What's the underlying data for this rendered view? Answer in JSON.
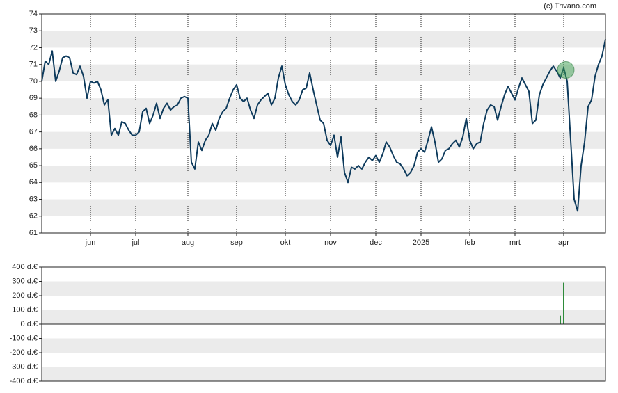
{
  "chart_data": [
    {
      "type": "line",
      "source": "(c) Trivano.com",
      "color": "#0d3a5c",
      "ylim": [
        61,
        74
      ],
      "yticks": [
        61,
        62,
        63,
        64,
        65,
        66,
        67,
        68,
        69,
        70,
        71,
        72,
        73,
        74
      ],
      "grid": true,
      "categories": [
        null,
        null,
        null,
        null,
        null,
        null,
        null,
        null,
        null,
        null,
        null,
        null,
        null,
        null,
        "jun",
        null,
        null,
        null,
        null,
        null,
        null,
        null,
        null,
        null,
        null,
        null,
        null,
        "jul",
        null,
        null,
        null,
        null,
        null,
        null,
        null,
        null,
        null,
        null,
        null,
        null,
        null,
        null,
        "aug",
        null,
        null,
        null,
        null,
        null,
        null,
        null,
        null,
        null,
        null,
        null,
        null,
        null,
        "sep",
        null,
        null,
        null,
        null,
        null,
        null,
        null,
        null,
        null,
        null,
        null,
        null,
        null,
        "okt",
        null,
        null,
        null,
        null,
        null,
        null,
        null,
        null,
        null,
        null,
        null,
        null,
        "nov",
        null,
        null,
        null,
        null,
        null,
        null,
        null,
        null,
        null,
        null,
        null,
        null,
        "dec",
        null,
        null,
        null,
        null,
        null,
        null,
        null,
        null,
        null,
        null,
        null,
        null,
        "2025",
        null,
        null,
        null,
        null,
        null,
        null,
        null,
        null,
        null,
        null,
        null,
        null,
        null,
        "feb",
        null,
        null,
        null,
        null,
        null,
        null,
        null,
        null,
        null,
        null,
        null,
        null,
        "mrt",
        null,
        null,
        null,
        null,
        null,
        null,
        null,
        null,
        null,
        null,
        null,
        null,
        null,
        "apr",
        null,
        null,
        null,
        null,
        null,
        null,
        null,
        null,
        null,
        null,
        null,
        null
      ],
      "values": [
        70.0,
        71.2,
        71.0,
        71.8,
        70.0,
        70.6,
        71.4,
        71.5,
        71.4,
        70.5,
        70.4,
        70.9,
        70.3,
        69.0,
        70.0,
        69.9,
        70.0,
        69.5,
        68.6,
        68.9,
        66.8,
        67.2,
        66.8,
        67.6,
        67.5,
        67.1,
        66.8,
        66.8,
        67.0,
        68.2,
        68.4,
        67.5,
        68.0,
        68.7,
        67.8,
        68.4,
        68.7,
        68.3,
        68.5,
        68.6,
        69.0,
        69.1,
        69.0,
        65.2,
        64.8,
        66.4,
        65.9,
        66.5,
        66.8,
        67.5,
        67.1,
        67.8,
        68.2,
        68.4,
        69.0,
        69.5,
        69.8,
        69.0,
        68.8,
        69.0,
        68.3,
        67.8,
        68.6,
        68.9,
        69.1,
        69.3,
        68.6,
        69.0,
        70.2,
        70.9,
        69.8,
        69.2,
        68.8,
        68.6,
        68.9,
        69.5,
        69.6,
        70.5,
        69.5,
        68.6,
        67.7,
        67.5,
        66.5,
        66.2,
        66.8,
        65.5,
        66.7,
        64.6,
        64.0,
        64.9,
        64.8,
        65.0,
        64.8,
        65.2,
        65.5,
        65.3,
        65.6,
        65.2,
        65.7,
        66.4,
        66.1,
        65.6,
        65.2,
        65.1,
        64.8,
        64.4,
        64.6,
        65.0,
        65.8,
        66.0,
        65.8,
        66.5,
        67.3,
        66.4,
        65.2,
        65.4,
        65.9,
        66.0,
        66.3,
        66.5,
        66.1,
        66.7,
        67.8,
        66.5,
        66.0,
        66.3,
        66.4,
        67.5,
        68.3,
        68.6,
        68.5,
        67.7,
        68.5,
        69.2,
        69.7,
        69.3,
        68.9,
        69.6,
        70.2,
        69.8,
        69.4,
        67.5,
        67.7,
        69.2,
        69.8,
        70.2,
        70.6,
        70.9,
        70.6,
        70.2,
        70.8,
        70.0,
        66.5,
        63.0,
        62.3,
        65.0,
        66.4,
        68.5,
        68.9,
        70.3,
        71.0,
        71.5,
        72.5
      ]
    },
    {
      "type": "bar",
      "color": "#2e8b3a",
      "ylim": [
        -400,
        400
      ],
      "grid": true,
      "yticks": [
        {
          "value": -400,
          "label": "-400 d.€"
        },
        {
          "value": -300,
          "label": "-300 d.€"
        },
        {
          "value": -200,
          "label": "-200 d.€"
        },
        {
          "value": -100,
          "label": "-100 d.€"
        },
        {
          "value": 0,
          "label": "0 d.€"
        },
        {
          "value": 100,
          "label": "100 d.€"
        },
        {
          "value": 200,
          "label": "200 d.€"
        },
        {
          "value": 300,
          "label": "300 d.€"
        },
        {
          "value": 400,
          "label": "400 d.€"
        }
      ],
      "values": [
        0,
        0,
        0,
        0,
        0,
        0,
        0,
        0,
        0,
        0,
        0,
        0,
        0,
        0,
        0,
        0,
        0,
        0,
        0,
        0,
        0,
        0,
        0,
        0,
        0,
        0,
        0,
        0,
        0,
        0,
        0,
        0,
        0,
        0,
        0,
        0,
        0,
        0,
        0,
        0,
        0,
        0,
        0,
        0,
        0,
        0,
        0,
        0,
        0,
        0,
        0,
        0,
        0,
        0,
        0,
        0,
        0,
        0,
        0,
        0,
        0,
        0,
        0,
        0,
        0,
        0,
        0,
        0,
        0,
        0,
        0,
        0,
        0,
        0,
        0,
        0,
        0,
        0,
        0,
        0,
        0,
        0,
        0,
        0,
        0,
        0,
        0,
        0,
        0,
        0,
        0,
        0,
        0,
        0,
        0,
        0,
        0,
        0,
        0,
        0,
        0,
        0,
        0,
        0,
        0,
        0,
        0,
        0,
        0,
        0,
        0,
        0,
        0,
        0,
        0,
        0,
        0,
        0,
        0,
        0,
        0,
        0,
        0,
        0,
        0,
        0,
        0,
        0,
        0,
        0,
        0,
        0,
        0,
        0,
        0,
        0,
        0,
        0,
        0,
        0,
        0,
        0,
        0,
        0,
        0,
        0,
        0,
        0,
        0,
        60,
        290,
        0,
        0,
        0,
        0,
        0,
        0,
        0,
        0,
        0,
        0,
        0,
        0
      ]
    }
  ]
}
